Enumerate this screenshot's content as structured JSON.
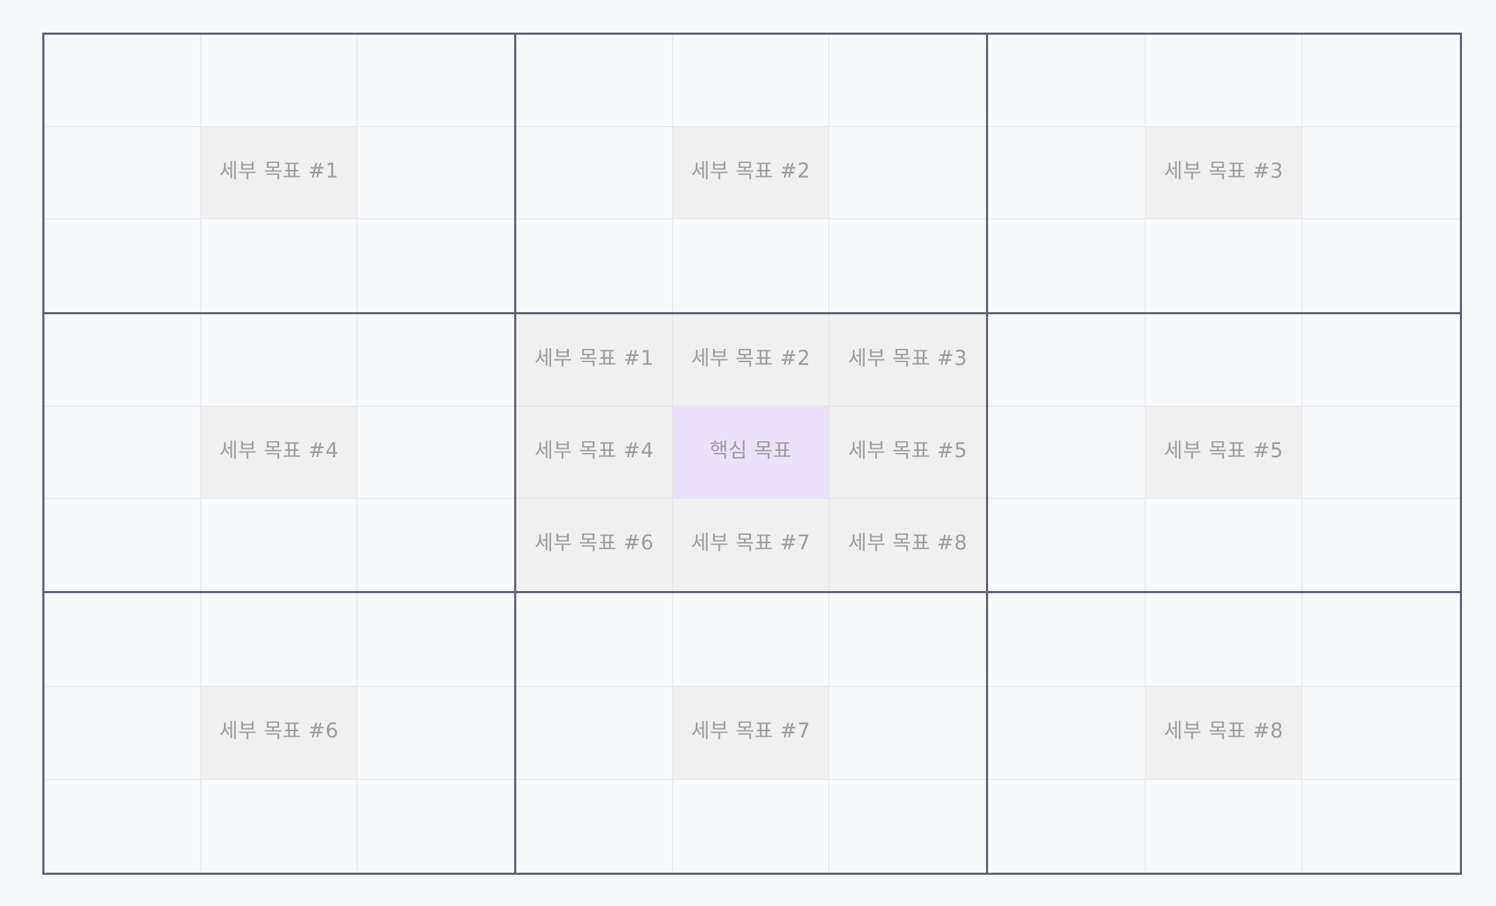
{
  "colors": {
    "background": "#f8f9fb",
    "block_border": "#5b6170",
    "cell_border": "#e0e2e7",
    "sub_goal_fill": "#f0f0f0",
    "core_goal_fill": "#ebe2fa",
    "label_text": "#9c9c9c"
  },
  "core_goal": "핵심 목표",
  "sub_goals": [
    "세부 목표 #1",
    "세부 목표 #2",
    "세부 목표 #3",
    "세부 목표 #4",
    "세부 목표 #5",
    "세부 목표 #6",
    "세부 목표 #7",
    "세부 목표 #8"
  ]
}
